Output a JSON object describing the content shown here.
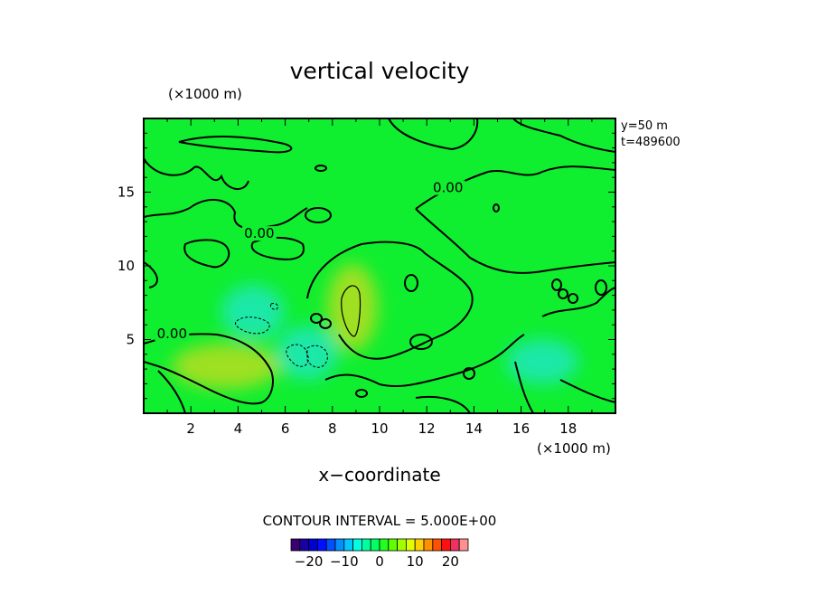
{
  "chart_data": {
    "type": "heatmap",
    "title": "vertical velocity",
    "x_unit_label": "(×1000 m)",
    "y_unit_label": "(×1000 m)",
    "xlabel": "x−coordinate",
    "ylabel": "",
    "xlim": [
      0,
      20
    ],
    "ylim": [
      0,
      20
    ],
    "x_ticks": [
      2,
      4,
      6,
      8,
      10,
      12,
      14,
      16,
      18
    ],
    "y_ticks": [
      5,
      10,
      15
    ],
    "annotations": [
      "y=50  m",
      "t=489600"
    ],
    "contour_info": "CONTOUR INTERVAL = 5.000E+00",
    "contour_labels": [
      {
        "text": "0.00",
        "x": 4.9,
        "y": 12.2
      },
      {
        "text": "0.00",
        "x": 1.2,
        "y": 5.4
      },
      {
        "text": "0.00",
        "x": 12.9,
        "y": 15.3
      }
    ],
    "colorbar": {
      "min": -25,
      "max": 25,
      "ticks": [
        -20,
        -10,
        0,
        10,
        20
      ],
      "colors": [
        "#3a0070",
        "#1a00a0",
        "#0000d0",
        "#0010ff",
        "#0050ff",
        "#0090ff",
        "#00c8ff",
        "#00ffe0",
        "#00ffa0",
        "#00ff60",
        "#20ff20",
        "#60ff00",
        "#a0ff00",
        "#e0ff00",
        "#ffd000",
        "#ff9000",
        "#ff5000",
        "#ff1010",
        "#f03060",
        "#ff9090"
      ]
    },
    "field_colors": {
      "background": "#10ee30",
      "updraft": "#9fe020",
      "downdraft": "#1ee8a8"
    }
  }
}
